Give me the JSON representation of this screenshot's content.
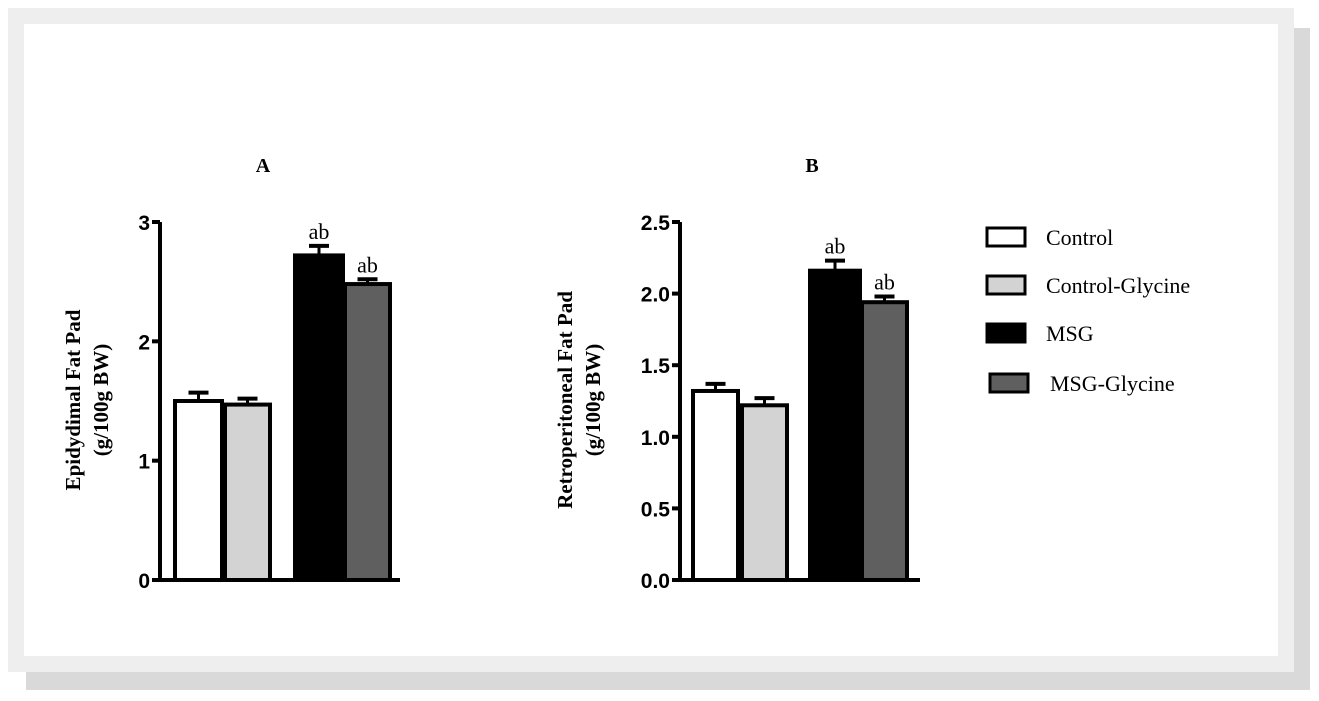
{
  "legend": [
    {
      "label": "Control",
      "color": "#ffffff"
    },
    {
      "label": "Control-Glycine",
      "color": "#d3d3d3"
    },
    {
      "label": "MSG",
      "color": "#000000"
    },
    {
      "label": "MSG-Glycine",
      "color": "#5f5f5f"
    }
  ],
  "chart_data": [
    {
      "type": "bar",
      "title": "A",
      "ylabel": "Epidydimal Fat Pad",
      "ylabel2": "(g/100g BW)",
      "ylim": [
        0,
        3
      ],
      "yticks": [
        "0",
        "1",
        "2",
        "3"
      ],
      "categories": [
        "Control",
        "Control-Glycine",
        "MSG",
        "MSG-Glycine"
      ],
      "values": [
        1.5,
        1.47,
        2.72,
        2.48
      ],
      "errors": [
        0.07,
        0.05,
        0.08,
        0.04
      ],
      "annotations": [
        "",
        "",
        "ab",
        "ab"
      ]
    },
    {
      "type": "bar",
      "title": "B",
      "ylabel": "Retroperitoneal Fat Pad",
      "ylabel2": "(g/100g BW)",
      "ylim": [
        0,
        2.5
      ],
      "yticks": [
        "0.0",
        "0.5",
        "1.0",
        "1.5",
        "2.0",
        "2.5"
      ],
      "categories": [
        "Control",
        "Control-Glycine",
        "MSG",
        "MSG-Glycine"
      ],
      "values": [
        1.32,
        1.22,
        2.16,
        1.94
      ],
      "errors": [
        0.05,
        0.05,
        0.07,
        0.04
      ],
      "annotations": [
        "",
        "",
        "ab",
        "ab"
      ]
    }
  ]
}
